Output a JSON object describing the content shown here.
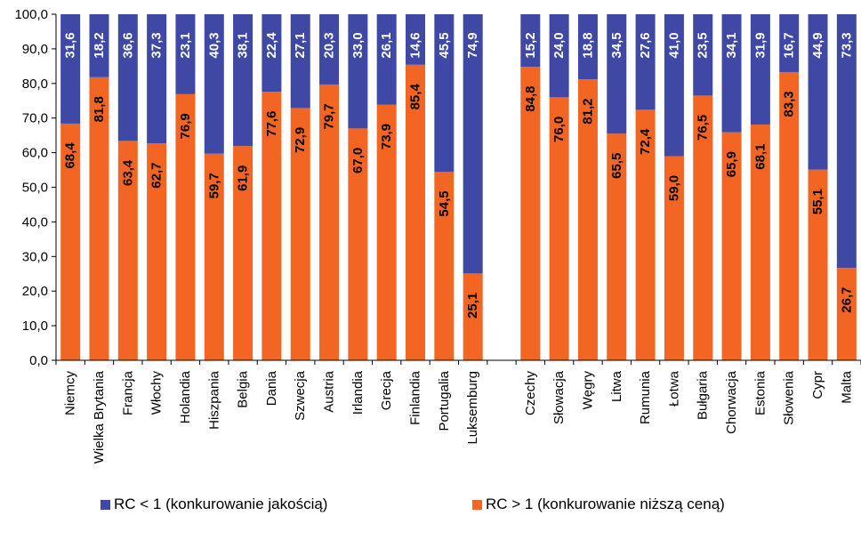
{
  "chart_data": {
    "type": "bar",
    "stacked": true,
    "percent": true,
    "ylim": [
      0,
      100
    ],
    "yticks": [
      "0,0",
      "10,0",
      "20,0",
      "30,0",
      "40,0",
      "50,0",
      "60,0",
      "70,0",
      "80,0",
      "90,0",
      "100,0"
    ],
    "categories": [
      "Niemcy",
      "Wielka Brytania",
      "Francja",
      "Włochy",
      "Holandia",
      "Hiszpania",
      "Belgia",
      "Dania",
      "Szwecja",
      "Austria",
      "Irlandia",
      "Grecja",
      "Finlandia",
      "Portugalia",
      "Luksemburg",
      "",
      "Czechy",
      "Słowacja",
      "Węgry",
      "Litwa",
      "Rumunia",
      "Łotwa",
      "Bułgaria",
      "Chorwacja",
      "Estonia",
      "Słowenia",
      "Cypr",
      "Malta"
    ],
    "series": [
      {
        "name": "RC > 1 (konkurowanie niższą ceną)",
        "color": "#F26522",
        "values": [
          68.4,
          81.8,
          63.4,
          62.7,
          76.9,
          59.7,
          61.9,
          77.6,
          72.9,
          79.7,
          67.0,
          73.9,
          85.4,
          54.5,
          25.1,
          null,
          84.8,
          76.0,
          81.2,
          65.5,
          72.4,
          59.0,
          76.5,
          65.9,
          68.1,
          83.3,
          55.1,
          26.7
        ],
        "labels": [
          "68,4",
          "81,8",
          "63,4",
          "62,7",
          "76,9",
          "59,7",
          "61,9",
          "77,6",
          "72,9",
          "79,7",
          "67,0",
          "73,9",
          "85,4",
          "54,5",
          "25,1",
          "",
          "84,8",
          "76,0",
          "81,2",
          "65,5",
          "72,4",
          "59,0",
          "76,5",
          "65,9",
          "68,1",
          "83,3",
          "55,1",
          "26,7"
        ],
        "label_color": "#000000"
      },
      {
        "name": "RC < 1 (konkurowanie jakością)",
        "color": "#3F48A5",
        "values": [
          31.6,
          18.2,
          36.6,
          37.3,
          23.1,
          40.3,
          38.1,
          22.4,
          27.1,
          20.3,
          33.0,
          26.1,
          14.6,
          45.5,
          74.9,
          null,
          15.2,
          24.0,
          18.8,
          34.5,
          27.6,
          41.0,
          23.5,
          34.1,
          31.9,
          16.7,
          44.9,
          73.3
        ],
        "labels": [
          "31,6",
          "18,2",
          "36,6",
          "37,3",
          "23,1",
          "40,3",
          "38,1",
          "22,4",
          "27,1",
          "20,3",
          "33,0",
          "26,1",
          "14,6",
          "45,5",
          "74,9",
          "",
          "15,2",
          "24,0",
          "18,8",
          "34,5",
          "27,6",
          "41,0",
          "23,5",
          "34,1",
          "31,9",
          "16,7",
          "44,9",
          "73,3"
        ],
        "label_color": "#ffffff"
      }
    ],
    "legend": [
      {
        "label": "RC < 1 (konkurowanie jakością)",
        "color": "#3F48A5"
      },
      {
        "label": "RC > 1 (konkurowanie niższą ceną)",
        "color": "#F26522"
      }
    ],
    "legend_position": "bottom"
  }
}
